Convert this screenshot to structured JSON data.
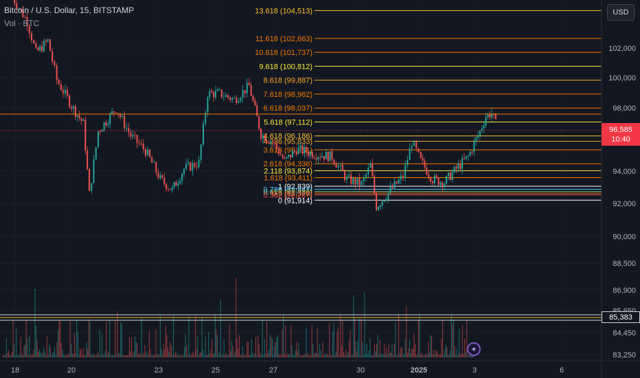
{
  "header": {
    "symbol_line": "Bitcoin / U.S. Dollar, 15, BITSTAMP",
    "volume_line": "Vol · BTC"
  },
  "currency_button": "USD",
  "current_price": {
    "value": "96,585",
    "countdown": "10:40",
    "color": "#f23645"
  },
  "low_price_label": "85,383",
  "goto_realtime_icon": "sparkle-icon",
  "chart_data": {
    "type": "candlestick",
    "symbol": "Bitcoin / U.S. Dollar",
    "interval": "15",
    "exchange": "BITSTAMP",
    "y_axis_ticks": [
      "102,000",
      "100,000",
      "98,000",
      "96,000",
      "94,000",
      "92,000",
      "90,000",
      "88,500",
      "86,900",
      "85,650",
      "84,450",
      "83,250"
    ],
    "x_axis_ticks": [
      "18",
      "20",
      "23",
      "25",
      "27",
      "30",
      "2025",
      "3",
      "6"
    ],
    "fib_levels": [
      {
        "label": "13.618 (104,513)",
        "color": "#fbc02d"
      },
      {
        "label": "11.618 (102,663)",
        "color": "#f57c00"
      },
      {
        "label": "10.618 (101,737)",
        "color": "#f57c00"
      },
      {
        "label": "9.618 (100,812)",
        "color": "#ffeb3b"
      },
      {
        "label": "8.618 (99,887)",
        "color": "#f9a825"
      },
      {
        "label": "7.618 (98,962)",
        "color": "#f57c00"
      },
      {
        "label": "6.618 (98,037)",
        "color": "#f57c00"
      },
      {
        "label": "5.618 (97,112)",
        "color": "#ffeb3b"
      },
      {
        "label": "4.618 (96,186)",
        "color": "#fbc02d"
      },
      {
        "label": "4.236 (95,833)",
        "color": "#f9a825"
      },
      {
        "label": "3.618 (95,261)",
        "color": "#f57c00"
      },
      {
        "label": "2.618 (94,336)",
        "color": "#f57c00"
      },
      {
        "label": "2.118 (93,874)",
        "color": "#ffeb3b"
      },
      {
        "label": "1.618 (93,411)",
        "color": "#f57c00"
      },
      {
        "label": "1 (92,839)",
        "color": "#ffffff"
      },
      {
        "label": "0.786 (92,641)",
        "color": "#4fc3f7"
      },
      {
        "label": "0.618 (92,486)",
        "color": "#81c784"
      },
      {
        "label": "0.5 (92,376)",
        "color": "#f57c00"
      },
      {
        "label": "0.382 (92,267)",
        "color": "#ef5350"
      },
      {
        "label": "0 (91,914)",
        "color": "#ffffff"
      }
    ],
    "price_path": [
      [
        "18",
        105400
      ],
      [
        "18.5",
        103800
      ],
      [
        "18.8",
        101700
      ],
      [
        "19.2",
        102500
      ],
      [
        "19.5",
        99900
      ],
      [
        "20",
        98200
      ],
      [
        "20.4",
        97000
      ],
      [
        "20.6",
        92300
      ],
      [
        "20.9",
        96500
      ],
      [
        "21.5",
        98000
      ],
      [
        "22",
        96200
      ],
      [
        "22.5",
        95200
      ],
      [
        "23",
        93300
      ],
      [
        "23.4",
        92600
      ],
      [
        "23.8",
        94000
      ],
      [
        "24.3",
        94400
      ],
      [
        "24.6",
        99000
      ],
      [
        "25",
        99000
      ],
      [
        "25.5",
        98600
      ],
      [
        "26",
        99500
      ],
      [
        "26.4",
        96300
      ],
      [
        "26.8",
        95800
      ],
      [
        "27.2",
        94500
      ],
      [
        "27.6",
        95300
      ],
      [
        "28.2",
        95000
      ],
      [
        "28.8",
        94800
      ],
      [
        "29.3",
        93300
      ],
      [
        "29.8",
        93000
      ],
      [
        "30.1",
        94200
      ],
      [
        "30.3",
        91500
      ],
      [
        "30.7",
        92400
      ],
      [
        "31.2",
        93500
      ],
      [
        "31.5",
        95800
      ],
      [
        "31.8",
        94500
      ],
      [
        "32.2",
        93300
      ],
      [
        "32.6",
        93100
      ],
      [
        "33",
        94000
      ],
      [
        "33.4",
        94800
      ],
      [
        "33.8",
        96500
      ],
      [
        "34",
        97500
      ],
      [
        "34.2",
        97700
      ],
      [
        "34.4",
        96600
      ]
    ]
  }
}
